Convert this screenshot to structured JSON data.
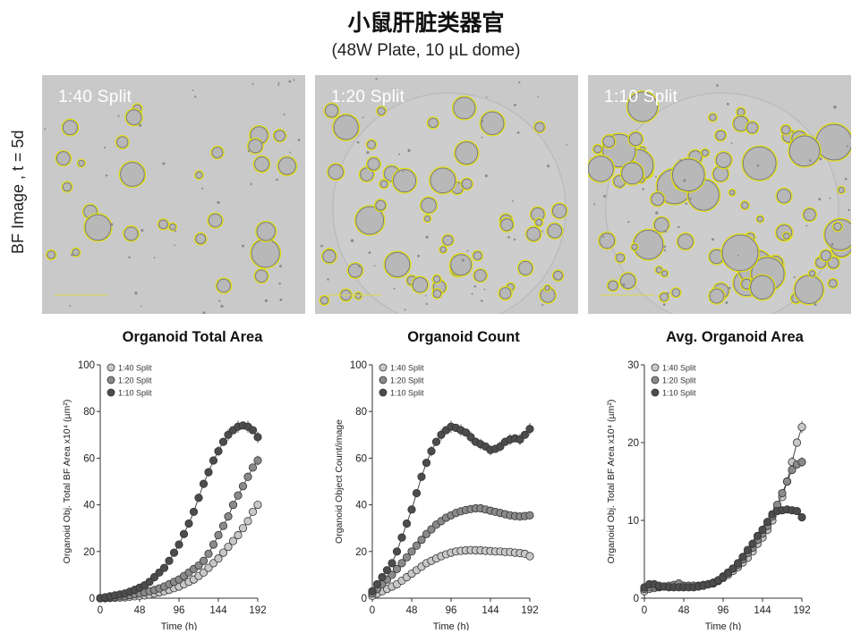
{
  "header": {
    "title": "小鼠肝脏类器官",
    "subtitle": "(48W Plate, 10 µL dome)",
    "row_label": "BF Image , t = 5d"
  },
  "images": [
    {
      "label": "1:40 Split",
      "density": "low"
    },
    {
      "label": "1:20 Split",
      "density": "medium"
    },
    {
      "label": "1:10 Split",
      "density": "high"
    }
  ],
  "colors": {
    "outline": "#e3e000",
    "series_1_40": "#c8c8c8",
    "series_1_20": "#8a8a8a",
    "series_1_10": "#4c4c4c"
  },
  "chart_data": [
    {
      "type": "line",
      "title": "Organoid Total Area",
      "xlabel": "Time (h)",
      "ylabel": "Organoid Obj. Total BF Area x10⁴ (µm²)",
      "xlim": [
        0,
        192
      ],
      "ylim": [
        0,
        100
      ],
      "xticks": [
        0,
        48,
        96,
        144,
        192
      ],
      "yticks": [
        0,
        20,
        40,
        60,
        80,
        100
      ],
      "legend": "top-left",
      "x": [
        0,
        6,
        12,
        18,
        24,
        30,
        36,
        42,
        48,
        54,
        60,
        66,
        72,
        78,
        84,
        90,
        96,
        102,
        108,
        114,
        120,
        126,
        132,
        138,
        144,
        150,
        156,
        162,
        168,
        174,
        180,
        186,
        192
      ],
      "series": [
        {
          "name": "1:40 Split",
          "color": "#c8c8c8",
          "values": [
            0,
            0,
            0.1,
            0.2,
            0.3,
            0.4,
            0.6,
            0.8,
            1,
            1.2,
            1.5,
            2,
            2.5,
            3,
            3.6,
            4.3,
            5,
            6,
            7,
            8,
            9.5,
            11,
            13,
            15,
            17,
            19.5,
            22,
            24.5,
            27,
            30,
            33,
            37,
            40
          ]
        },
        {
          "name": "1:20 Split",
          "color": "#8a8a8a",
          "values": [
            0,
            0.2,
            0.4,
            0.6,
            0.8,
            1,
            1.3,
            1.7,
            2,
            2.5,
            3,
            3.5,
            4.2,
            5,
            6,
            7,
            8,
            9.5,
            11,
            12.5,
            14,
            16,
            19,
            23,
            27,
            31,
            35,
            40,
            44,
            48,
            52,
            56,
            59
          ]
        },
        {
          "name": "1:10 Split",
          "color": "#4c4c4c",
          "values": [
            0,
            0.4,
            0.8,
            1.2,
            1.6,
            2,
            2.8,
            3.6,
            4.5,
            5.5,
            7,
            9,
            11,
            13,
            16,
            19.5,
            23,
            27.5,
            32,
            37,
            43,
            49,
            54,
            59,
            63,
            67,
            70,
            72,
            73.5,
            74,
            73.5,
            72,
            69
          ]
        }
      ]
    },
    {
      "type": "line",
      "title": "Organoid Count",
      "xlabel": "Time (h)",
      "ylabel": "Organoid Object Count/image",
      "xlim": [
        0,
        192
      ],
      "ylim": [
        0,
        100
      ],
      "xticks": [
        0,
        48,
        96,
        144,
        192
      ],
      "yticks": [
        0,
        20,
        40,
        60,
        80,
        100
      ],
      "legend": "top-left",
      "x": [
        0,
        6,
        12,
        18,
        24,
        30,
        36,
        42,
        48,
        54,
        60,
        66,
        72,
        78,
        84,
        90,
        96,
        102,
        108,
        114,
        120,
        126,
        132,
        138,
        144,
        150,
        156,
        162,
        168,
        174,
        180,
        186,
        192
      ],
      "series": [
        {
          "name": "1:40 Split",
          "color": "#c8c8c8",
          "values": [
            1,
            2,
            3,
            4,
            5,
            6,
            7.5,
            9,
            10.5,
            12,
            13.5,
            15,
            16,
            17,
            18,
            18.8,
            19.5,
            20,
            20.3,
            20.5,
            20.6,
            20.5,
            20.5,
            20.3,
            20.2,
            20,
            20,
            19.8,
            19.8,
            19.5,
            19.3,
            19,
            18
          ]
        },
        {
          "name": "1:20 Split",
          "color": "#8a8a8a",
          "values": [
            2,
            4,
            6,
            8,
            10,
            12.5,
            15,
            17.5,
            20,
            22.5,
            25,
            27.5,
            29.5,
            31.5,
            33,
            34.5,
            35.5,
            36.5,
            37.2,
            37.8,
            38.2,
            38.5,
            38.5,
            38,
            37.5,
            37,
            36.5,
            36,
            35.5,
            35.2,
            35,
            35.2,
            35.5
          ]
        },
        {
          "name": "1:10 Split",
          "color": "#4c4c4c",
          "values": [
            3,
            6,
            9,
            12,
            15,
            20,
            26,
            32,
            38,
            45,
            52,
            58,
            63,
            67,
            70,
            72,
            73.5,
            73,
            72,
            71,
            69,
            67,
            66,
            65,
            63.5,
            64,
            65,
            67,
            68,
            68.5,
            68,
            70,
            72.5
          ]
        }
      ]
    },
    {
      "type": "line",
      "title": "Avg. Organoid Area",
      "xlabel": "Time (h)",
      "ylabel": "Organoid Obj. Total BF Area x10⁴ (µm²)",
      "xlim": [
        0,
        192
      ],
      "ylim": [
        0,
        30
      ],
      "xticks": [
        0,
        48,
        96,
        144,
        192
      ],
      "yticks": [
        0,
        10,
        20,
        30
      ],
      "legend": "top-left",
      "x": [
        0,
        6,
        12,
        18,
        24,
        30,
        36,
        42,
        48,
        54,
        60,
        66,
        72,
        78,
        84,
        90,
        96,
        102,
        108,
        114,
        120,
        126,
        132,
        138,
        144,
        150,
        156,
        162,
        168,
        174,
        180,
        186,
        192
      ],
      "series": [
        {
          "name": "1:40 Split",
          "color": "#c8c8c8",
          "values": [
            0.9,
            1.2,
            1.3,
            1.4,
            1.5,
            1.5,
            1.5,
            1.6,
            1.6,
            1.6,
            1.6,
            1.6,
            1.7,
            1.8,
            1.9,
            2.2,
            2.6,
            3,
            3.5,
            4,
            4.6,
            5.2,
            6,
            7,
            7.8,
            8.8,
            10,
            11.5,
            13,
            15,
            17.5,
            20,
            22
          ]
        },
        {
          "name": "1:20 Split",
          "color": "#8a8a8a",
          "values": [
            1.2,
            1.4,
            1.5,
            1.5,
            1.5,
            1.6,
            1.7,
            1.9,
            1.6,
            1.6,
            1.6,
            1.6,
            1.7,
            1.8,
            2,
            2.3,
            2.8,
            3.3,
            3.8,
            4.3,
            5,
            5.8,
            6.5,
            7.5,
            8.3,
            9.3,
            10.5,
            12,
            13.5,
            15,
            16.5,
            17.2,
            17.5
          ]
        },
        {
          "name": "1:10 Split",
          "color": "#4c4c4c",
          "values": [
            1.4,
            1.8,
            1.8,
            1.6,
            1.5,
            1.4,
            1.4,
            1.4,
            1.4,
            1.4,
            1.4,
            1.5,
            1.6,
            1.8,
            2,
            2.3,
            2.7,
            3.2,
            3.8,
            4.5,
            5.3,
            6.2,
            7,
            8,
            8.8,
            9.8,
            10.8,
            11.2,
            11.3,
            11.4,
            11.3,
            11.2,
            10.4
          ]
        }
      ]
    }
  ]
}
